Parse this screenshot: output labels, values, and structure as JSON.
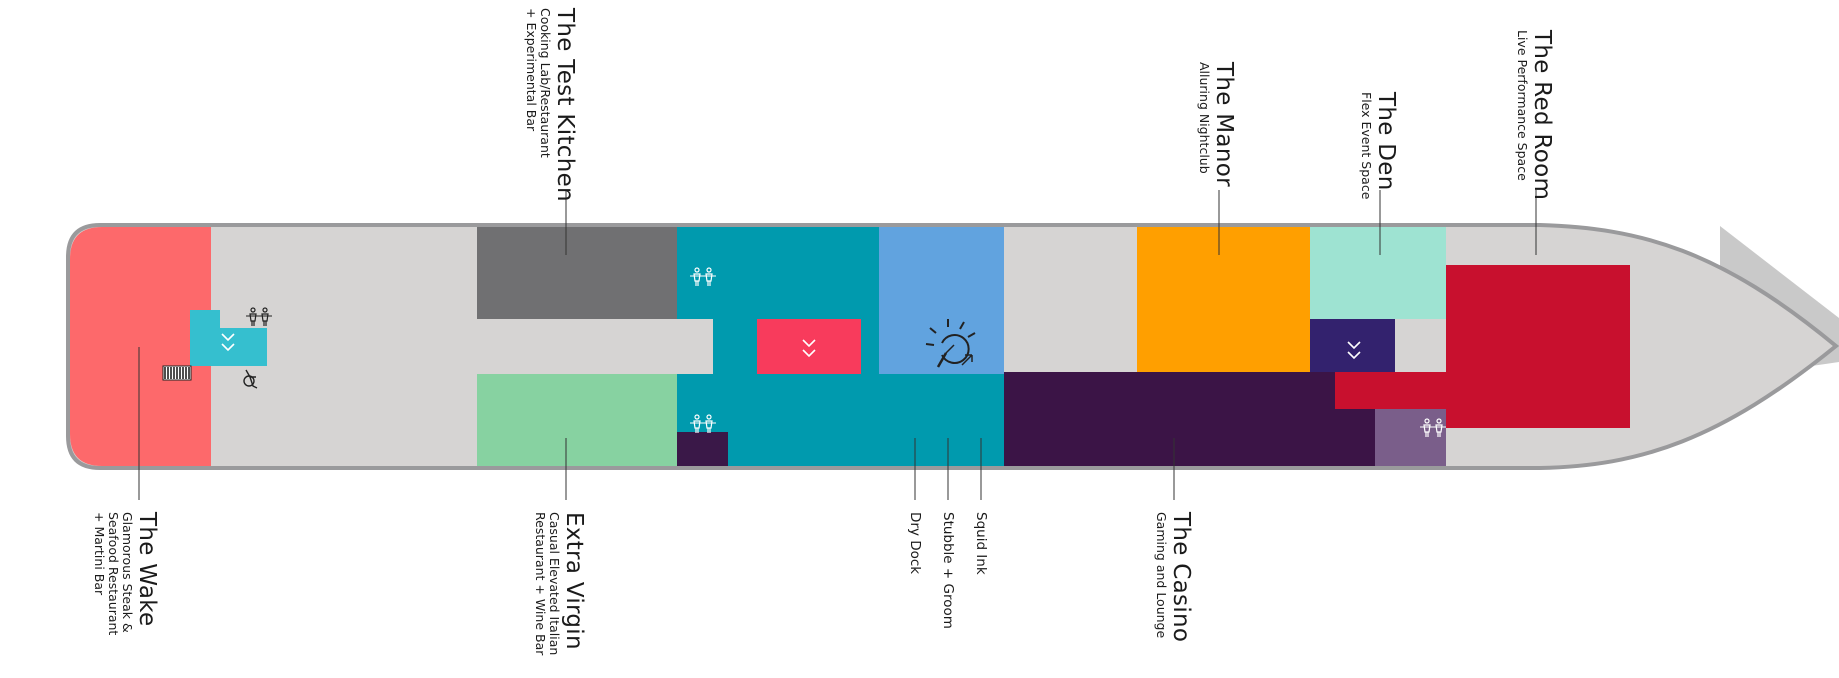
{
  "colors": {
    "hull_outline": "#9a9a9c",
    "hull_fill": "#d6d4d3",
    "bow_shadow": "#c9c9c9",
    "wake": "#fd696b",
    "test_kitchen": "#707072",
    "extra_virgin": "#87d2a1",
    "teal": "#009aae",
    "aqua_stair": "#35bfcf",
    "pink_venue": "#f83b5c",
    "blue_venue": "#61a3df",
    "manor": "#ff9f00",
    "den": "#9ee3d2",
    "navy_lift": "#33226e",
    "red_room": "#c8102e",
    "casino": "#3b1446",
    "mauve": "#7a5e8a",
    "dark_plum": "#3a1848",
    "icon_white": "#ffffff",
    "icon_dark": "#222222",
    "leader_line": "#333333"
  },
  "venues": {
    "wake": {
      "name": "The Wake",
      "description": [
        "Glamorous Steak &",
        "Seafood Restaurant",
        "+ Martini Bar"
      ]
    },
    "extra_virgin": {
      "name": "Extra Virgin",
      "description": [
        "Casual Elevated Italian",
        "Restaurant + Wine Bar"
      ]
    },
    "test_kitchen": {
      "name": "The Test Kitchen",
      "description": [
        "Cooking Lab/Restaurant",
        "+ Experimental Bar"
      ]
    },
    "manor": {
      "name": "The Manor",
      "description": [
        "Alluring Nightclub"
      ]
    },
    "den": {
      "name": "The Den",
      "description": [
        "Flex Event Space"
      ]
    },
    "red_room": {
      "name": "The Red Room",
      "description": [
        "Live Performance Space"
      ]
    },
    "casino": {
      "name": "The Casino",
      "description": [
        "Gaming and Lounge"
      ]
    },
    "dry_dock": {
      "name": "Dry Dock"
    },
    "stubble_groom": {
      "name": "Stubble + Groom"
    },
    "squid_ink": {
      "name": "Squid Ink"
    }
  },
  "icons": {
    "restroom": "restroom-icon",
    "elevator": "elevator-icon",
    "stairs": "stairs-icon",
    "accessible": "wheelchair-icon",
    "tattoo": "tattoo-parlor-icon"
  }
}
